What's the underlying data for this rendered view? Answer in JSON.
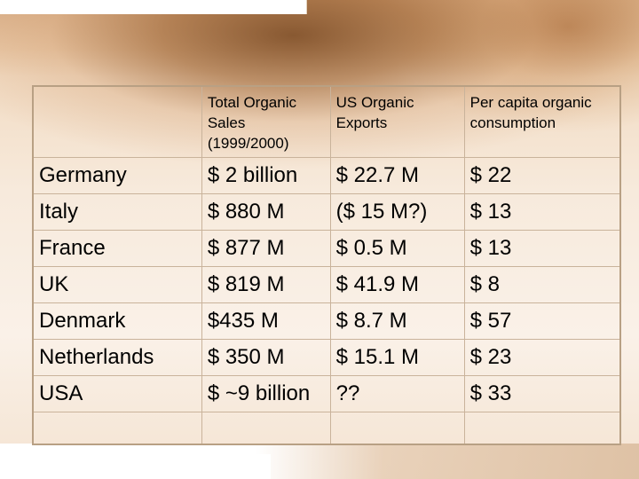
{
  "table": {
    "headers": [
      "",
      "Total Organic Sales (1999/2000)",
      "US Organic Exports",
      "Per capita organic consumption"
    ],
    "rows": [
      [
        "Germany",
        "$ 2 billion",
        "$ 22.7 M",
        "$ 22"
      ],
      [
        "Italy",
        "$ 880 M",
        "($ 15 M?)",
        "$ 13"
      ],
      [
        "France",
        "$ 877 M",
        "$ 0.5 M",
        "$ 13"
      ],
      [
        "UK",
        "$ 819 M",
        "$ 41.9 M",
        "$ 8"
      ],
      [
        "Denmark",
        "$435 M",
        "$ 8.7 M",
        "$ 57"
      ],
      [
        "Netherlands",
        "$ 350 M",
        "$ 15.1 M",
        "$ 23"
      ],
      [
        "USA",
        "$ ~9 billion",
        "??",
        "$ 33"
      ]
    ]
  },
  "colors": {
    "border": "#c9b39b",
    "background_warm": "#f7eadc",
    "background_dark": "#7a4620"
  }
}
